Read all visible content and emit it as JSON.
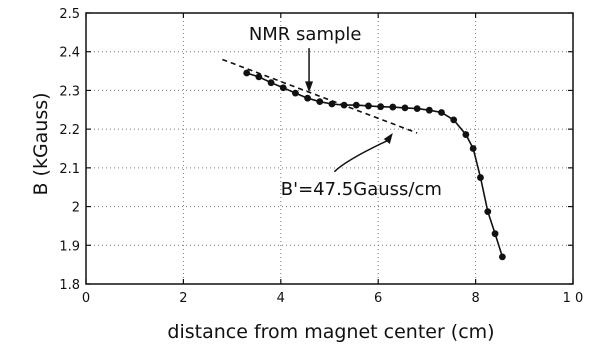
{
  "chart_data": {
    "type": "scatter",
    "title": "",
    "xlabel": "distance from magnet center (cm)",
    "ylabel": "B (kGauss)",
    "xlim": [
      0,
      10
    ],
    "ylim": [
      1.8,
      2.5
    ],
    "x_ticks": [
      0,
      2,
      4,
      6,
      8,
      10
    ],
    "x_tick_labels": [
      "0",
      "2",
      "4",
      "6",
      "8",
      "1 0"
    ],
    "y_ticks": [
      1.8,
      1.9,
      2.0,
      2.1,
      2.2,
      2.3,
      2.4,
      2.5
    ],
    "y_tick_labels": [
      "1.8",
      "1.9",
      "2",
      "2.1",
      "2.2",
      "2.3",
      "2.4",
      "2.5"
    ],
    "grid": true,
    "series": [
      {
        "style": "line-with-markers",
        "x": [
          3.3,
          3.55,
          3.8,
          4.05,
          4.3,
          4.55,
          4.8,
          5.05,
          5.3,
          5.55,
          5.8,
          6.05,
          6.3,
          6.55,
          6.8,
          7.05,
          7.3,
          7.55,
          7.8,
          7.95,
          8.1,
          8.25,
          8.4,
          8.55
        ],
        "y": [
          2.345,
          2.335,
          2.32,
          2.307,
          2.293,
          2.28,
          2.271,
          2.265,
          2.262,
          2.262,
          2.26,
          2.258,
          2.257,
          2.255,
          2.253,
          2.249,
          2.243,
          2.224,
          2.186,
          2.15,
          2.075,
          1.987,
          1.93,
          1.87
        ]
      },
      {
        "style": "dashed-fit",
        "x": [
          2.8,
          6.8
        ],
        "y": [
          2.38,
          2.19
        ]
      }
    ],
    "annotations": [
      {
        "text": "NMR sample",
        "x": 4.5,
        "y": 2.43,
        "arrow_to": [
          4.58,
          2.295
        ]
      },
      {
        "text": "B'=47.5Gauss/cm",
        "x": 4.0,
        "y": 2.03,
        "arrow_to": [
          6.3,
          2.19
        ]
      }
    ]
  }
}
